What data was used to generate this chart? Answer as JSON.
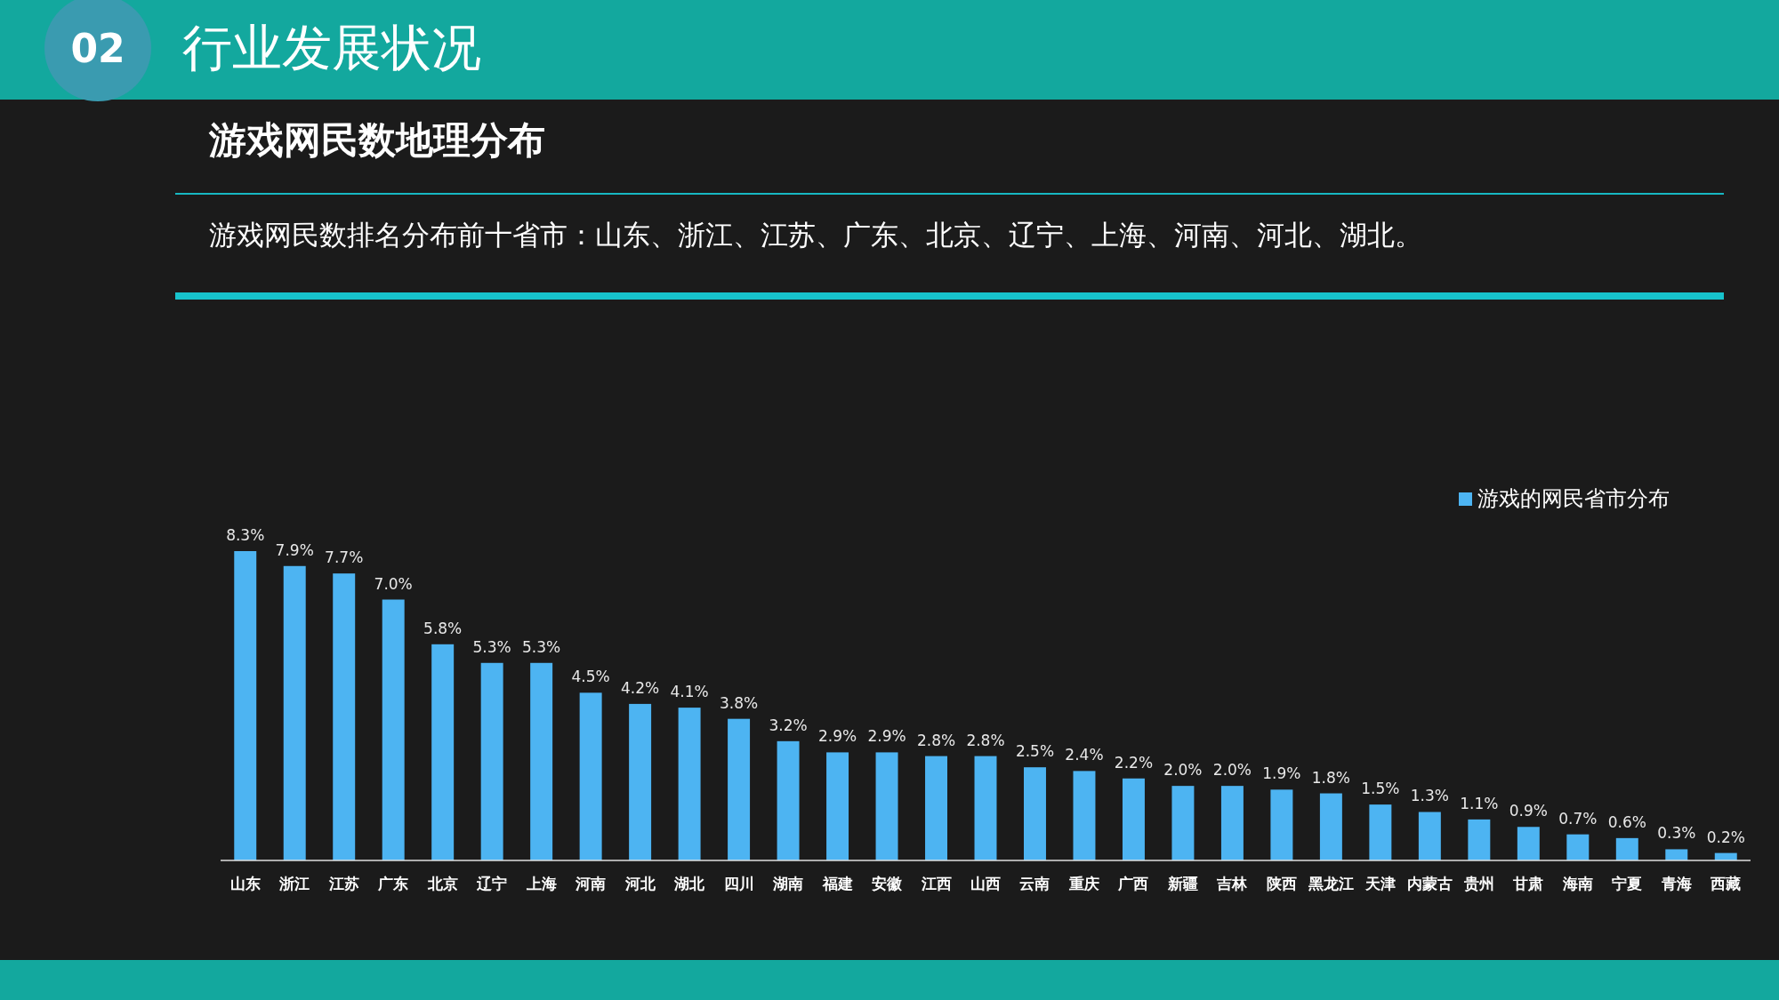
{
  "chart_data": {
    "type": "bar",
    "title": "游戏网民数地理分布",
    "subtitle": "游戏网民数排名分布前十省市：山东、浙江、江苏、广东、北京、辽宁、上海、河南、河北、湖北。",
    "annotations": [
      "02",
      "行业发展状况"
    ],
    "categories": [
      "山东",
      "浙江",
      "江苏",
      "广东",
      "北京",
      "辽宁",
      "上海",
      "河南",
      "河北",
      "湖北",
      "四川",
      "湖南",
      "福建",
      "安徽",
      "江西",
      "山西",
      "云南",
      "重庆",
      "广西",
      "新疆",
      "吉林",
      "陕西",
      "黑龙江",
      "天津",
      "内蒙古",
      "贵州",
      "甘肃",
      "海南",
      "宁夏",
      "青海",
      "西藏"
    ],
    "series": [
      {
        "name": "游戏的网民省市分布",
        "color": "#4db4f2",
        "values": [
          8.3,
          7.9,
          7.7,
          7.0,
          5.8,
          5.3,
          5.3,
          4.5,
          4.2,
          4.1,
          3.8,
          3.2,
          2.9,
          2.9,
          2.8,
          2.8,
          2.5,
          2.4,
          2.2,
          2.0,
          2.0,
          1.9,
          1.8,
          1.5,
          1.3,
          1.1,
          0.9,
          0.7,
          0.6,
          0.3,
          0.2
        ],
        "value_labels": [
          "8.3%",
          "7.9%",
          "7.7%",
          "7.0%",
          "5.8%",
          "5.3%",
          "5.3%",
          "4.5%",
          "4.2%",
          "4.1%",
          "3.8%",
          "3.2%",
          "2.9%",
          "2.9%",
          "2.8%",
          "2.8%",
          "2.5%",
          "2.4%",
          "2.2%",
          "2.0%",
          "2.0%",
          "1.9%",
          "1.8%",
          "1.5%",
          "1.3%",
          "1.1%",
          "0.9%",
          "0.7%",
          "0.6%",
          "0.3%",
          "0.2%"
        ]
      }
    ],
    "legend": "top right"
  }
}
